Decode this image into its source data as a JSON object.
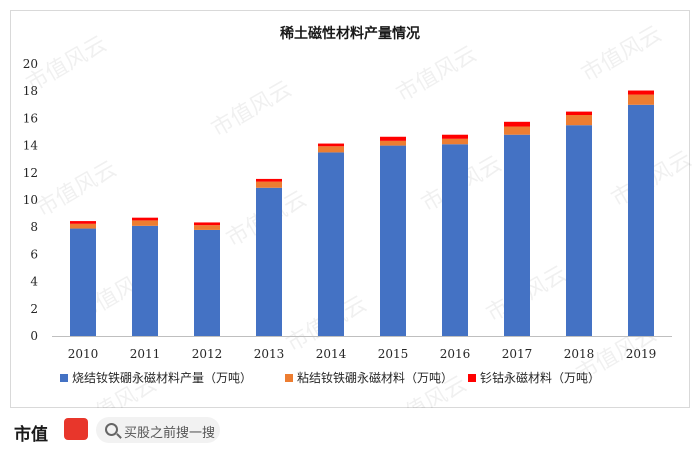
{
  "chart_data": {
    "type": "bar",
    "stacked": true,
    "title": "稀土磁性材料产量情况",
    "categories": [
      "2010",
      "2011",
      "2012",
      "2013",
      "2014",
      "2015",
      "2016",
      "2017",
      "2018",
      "2019"
    ],
    "series": [
      {
        "name": "烧结钕铁硼永磁材料产量（万吨）",
        "color": "#4472c4",
        "values": [
          7.9,
          8.1,
          7.8,
          10.9,
          13.5,
          14.0,
          14.1,
          14.8,
          15.5,
          17.0
        ]
      },
      {
        "name": "粘结钕铁硼永磁材料（万吨）",
        "color": "#ed7d31",
        "values": [
          0.35,
          0.4,
          0.35,
          0.45,
          0.45,
          0.35,
          0.4,
          0.6,
          0.75,
          0.75
        ]
      },
      {
        "name": "钐钴永磁材料（万吨）",
        "color": "#ff0000",
        "values": [
          0.2,
          0.2,
          0.2,
          0.2,
          0.2,
          0.3,
          0.3,
          0.35,
          0.25,
          0.3
        ]
      }
    ],
    "yticks": [
      "0",
      "2",
      "4",
      "6",
      "8",
      "10",
      "12",
      "14",
      "16",
      "18",
      "20"
    ],
    "ylim": [
      0,
      20
    ],
    "grid": false,
    "legend_position": "bottom"
  },
  "watermark": "市值风云",
  "footer": {
    "brand": "市值",
    "search_placeholder": "买股之前搜一搜"
  }
}
